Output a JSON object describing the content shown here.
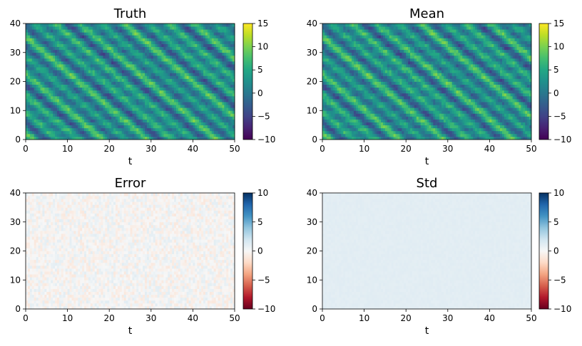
{
  "figure": {
    "panels": [
      {
        "title": "Truth",
        "xlabel": "t",
        "ylabel": "",
        "colormap": "viridis",
        "field": "truth"
      },
      {
        "title": "Mean",
        "xlabel": "t",
        "ylabel": "",
        "colormap": "viridis",
        "field": "mean"
      },
      {
        "title": "Error",
        "xlabel": "t",
        "ylabel": "",
        "colormap": "RdBu",
        "field": "error"
      },
      {
        "title": "Std",
        "xlabel": "t",
        "ylabel": "",
        "colormap": "RdBu",
        "field": "std"
      }
    ]
  },
  "chart_data": [
    {
      "type": "heatmap",
      "title": "Truth",
      "xlabel": "t",
      "ylabel": "",
      "xlim": [
        0,
        50
      ],
      "ylim": [
        0,
        40
      ],
      "xticks": [
        0,
        10,
        20,
        30,
        40,
        50
      ],
      "yticks": [
        0,
        10,
        20,
        30,
        40
      ],
      "colorbar": {
        "range": [
          -10,
          15
        ],
        "ticks": [
          -10,
          -5,
          0,
          5,
          10,
          15
        ],
        "colormap": "viridis"
      },
      "description_values": {
        "typical_range": [
          -5,
          12
        ],
        "pattern": "diagonal travelling waves"
      }
    },
    {
      "type": "heatmap",
      "title": "Mean",
      "xlabel": "t",
      "ylabel": "",
      "xlim": [
        0,
        50
      ],
      "ylim": [
        0,
        40
      ],
      "xticks": [
        0,
        10,
        20,
        30,
        40,
        50
      ],
      "yticks": [
        0,
        10,
        20,
        30,
        40
      ],
      "colorbar": {
        "range": [
          -10,
          15
        ],
        "ticks": [
          -10,
          -5,
          0,
          5,
          10,
          15
        ],
        "colormap": "viridis"
      }
    },
    {
      "type": "heatmap",
      "title": "Error",
      "xlabel": "t",
      "ylabel": "",
      "xlim": [
        0,
        50
      ],
      "ylim": [
        0,
        40
      ],
      "xticks": [
        0,
        10,
        20,
        30,
        40,
        50
      ],
      "yticks": [
        0,
        10,
        20,
        30,
        40
      ],
      "colorbar": {
        "range": [
          -10,
          10
        ],
        "ticks": [
          -10,
          -5,
          0,
          5,
          10
        ],
        "colormap": "RdBu"
      }
    },
    {
      "type": "heatmap",
      "title": "Std",
      "xlabel": "t",
      "ylabel": "",
      "xlim": [
        0,
        50
      ],
      "ylim": [
        0,
        40
      ],
      "xticks": [
        0,
        10,
        20,
        30,
        40,
        50
      ],
      "yticks": [
        0,
        10,
        20,
        30,
        40
      ],
      "colorbar": {
        "range": [
          -10,
          10
        ],
        "ticks": [
          -10,
          -5,
          0,
          5,
          10
        ],
        "colormap": "RdBu"
      }
    }
  ]
}
